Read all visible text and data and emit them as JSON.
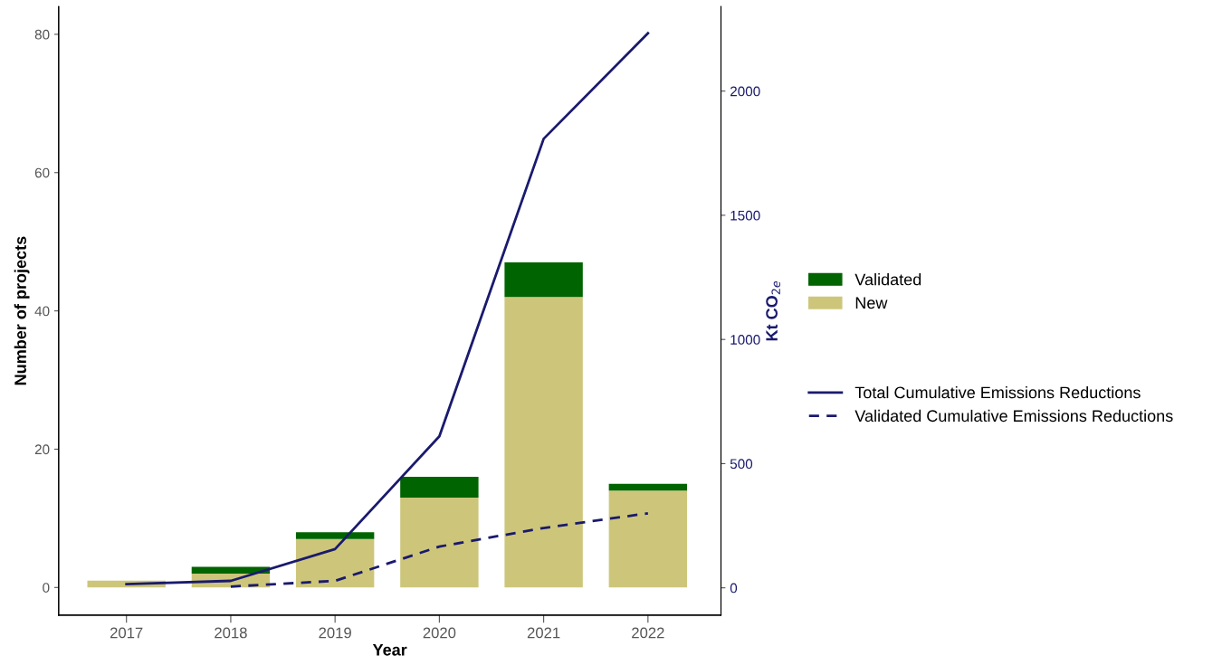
{
  "chart_data": {
    "type": "bar",
    "stacked": true,
    "xlabel": "Year",
    "ylabel": "Number of projects",
    "y2label": "Kt CO$_{2e}$",
    "categories": [
      "2017",
      "2018",
      "2019",
      "2020",
      "2021",
      "2022"
    ],
    "series": [
      {
        "name": "New",
        "color": "#cdc67a",
        "values": [
          1,
          2,
          7,
          13,
          42,
          14
        ]
      },
      {
        "name": "Validated",
        "color": "#006400",
        "values": [
          0,
          1,
          1,
          3,
          5,
          1
        ]
      },
      {
        "name": "Total Cumulative Emissions Reductions",
        "type": "line",
        "axis": "y2",
        "line_style": "solid",
        "color": "#1a1a6e",
        "values": [
          15,
          28,
          156,
          610,
          1808,
          2233
        ]
      },
      {
        "name": "Validated Cumulative Emissions Reductions",
        "type": "line",
        "axis": "y2",
        "line_style": "dashed",
        "color": "#1a1a6e",
        "values": [
          null,
          5,
          28,
          166,
          241,
          300
        ]
      }
    ],
    "ylim": [
      -4,
      84
    ],
    "yticks": [
      0,
      20,
      40,
      60,
      80
    ],
    "y2lim": [
      -110,
      2340
    ],
    "y2ticks": [
      0,
      500,
      1000,
      1500,
      2000
    ],
    "grid": false,
    "legend": "right"
  }
}
